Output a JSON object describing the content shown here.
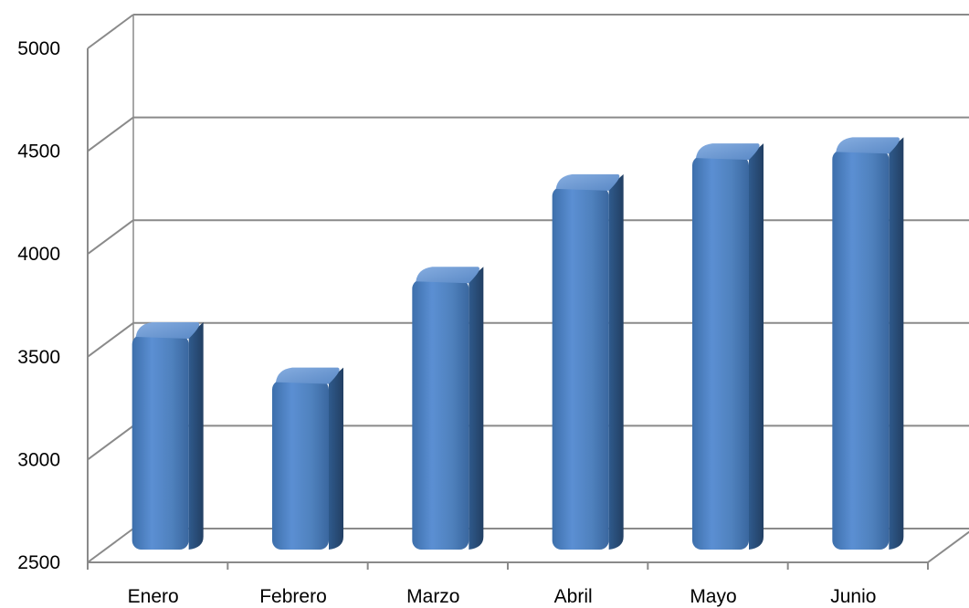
{
  "chart_data": {
    "type": "bar",
    "style": "3d-cylinder",
    "categories": [
      "Enero",
      "Febrero",
      "Marzo",
      "Abril",
      "Mayo",
      "Junio"
    ],
    "series": [
      {
        "values": [
          3650,
          3430,
          3920,
          4370,
          4520,
          4550
        ]
      }
    ],
    "ylim": [
      2500,
      5000
    ],
    "yticks": [
      "2500",
      "3000",
      "3500",
      "4000",
      "4500",
      "5000"
    ],
    "grid": true,
    "legend": "none",
    "colors": {
      "bar_front": "#4f81bd",
      "bar_side": "#2c4f7a",
      "bar_top": "#6f9bd6",
      "gridline": "#8a8a8a",
      "axis": "#8a8a8a"
    }
  }
}
